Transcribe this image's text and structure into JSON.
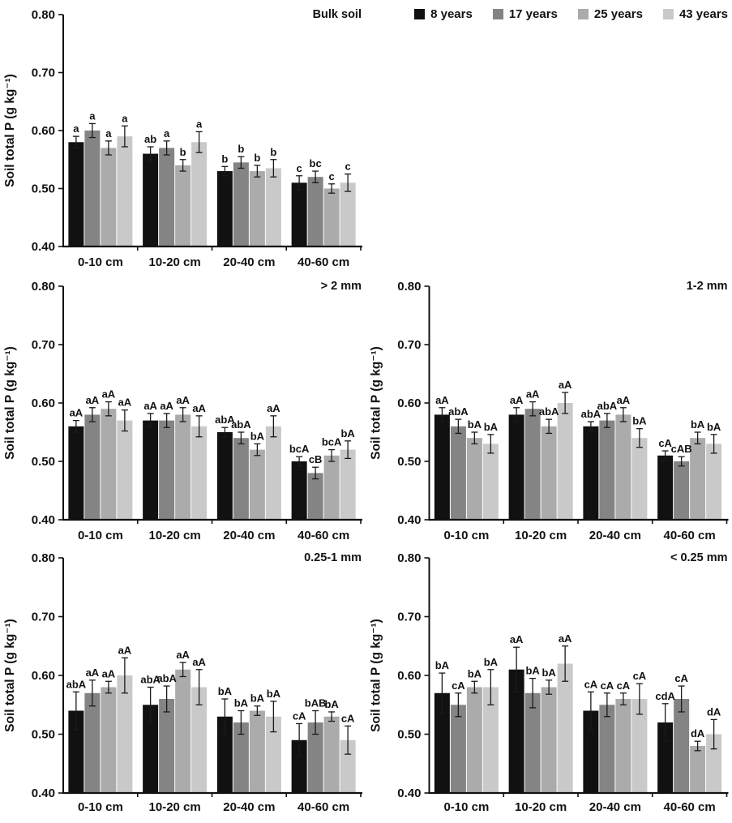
{
  "legend": {
    "items": [
      {
        "label": "8 years",
        "color": "#111111"
      },
      {
        "label": "17 years",
        "color": "#848484"
      },
      {
        "label": "25 years",
        "color": "#ababab"
      },
      {
        "label": "43 years",
        "color": "#c9c9c9"
      }
    ]
  },
  "axes": {
    "ylabel": "Soil total P (g kg⁻¹)",
    "ylim": [
      0.4,
      0.8
    ],
    "yticks": [
      "0.40",
      "0.50",
      "0.60",
      "0.70",
      "0.80"
    ],
    "categories": [
      "0-10 cm",
      "10-20 cm",
      "20-40 cm",
      "40-60 cm"
    ]
  },
  "chart_data": [
    {
      "type": "bar",
      "title": "Bulk soil",
      "xlabel": "",
      "ylabel": "Soil total P (g kg⁻¹)",
      "ylim": [
        0.4,
        0.8
      ],
      "yticks": [
        0.4,
        0.5,
        0.6,
        0.7,
        0.8
      ],
      "categories": [
        "0-10 cm",
        "10-20 cm",
        "20-40 cm",
        "40-60 cm"
      ],
      "legend_position": "top-right-outside",
      "grid": false,
      "series": [
        {
          "name": "8 years",
          "values": [
            0.58,
            0.56,
            0.53,
            0.51
          ],
          "errors": [
            0.01,
            0.012,
            0.008,
            0.012
          ],
          "sig_labels": [
            "a",
            "ab",
            "b",
            "c"
          ]
        },
        {
          "name": "17 years",
          "values": [
            0.6,
            0.57,
            0.545,
            0.52
          ],
          "errors": [
            0.012,
            0.012,
            0.01,
            0.01
          ],
          "sig_labels": [
            "a",
            "a",
            "b",
            "bc"
          ]
        },
        {
          "name": "25 years",
          "values": [
            0.57,
            0.54,
            0.53,
            0.5
          ],
          "errors": [
            0.012,
            0.01,
            0.01,
            0.008
          ],
          "sig_labels": [
            "a",
            "b",
            "b",
            "c"
          ]
        },
        {
          "name": "43 years",
          "values": [
            0.59,
            0.58,
            0.535,
            0.51
          ],
          "errors": [
            0.018,
            0.018,
            0.015,
            0.015
          ],
          "sig_labels": [
            "a",
            "a",
            "b",
            "c"
          ]
        }
      ]
    },
    {
      "type": "bar",
      "title": "> 2 mm",
      "xlabel": "",
      "ylabel": "Soil total P (g kg⁻¹)",
      "ylim": [
        0.4,
        0.8
      ],
      "yticks": [
        0.4,
        0.5,
        0.6,
        0.7,
        0.8
      ],
      "categories": [
        "0-10 cm",
        "10-20 cm",
        "20-40 cm",
        "40-60 cm"
      ],
      "grid": false,
      "series": [
        {
          "name": "8 years",
          "values": [
            0.56,
            0.57,
            0.55,
            0.5
          ],
          "errors": [
            0.01,
            0.012,
            0.008,
            0.008
          ],
          "sig_labels": [
            "aA",
            "aA",
            "abA",
            "bcA"
          ]
        },
        {
          "name": "17 years",
          "values": [
            0.58,
            0.57,
            0.54,
            0.48
          ],
          "errors": [
            0.012,
            0.012,
            0.01,
            0.01
          ],
          "sig_labels": [
            "aA",
            "aA",
            "abA",
            "cB"
          ]
        },
        {
          "name": "25 years",
          "values": [
            0.59,
            0.58,
            0.52,
            0.51
          ],
          "errors": [
            0.012,
            0.012,
            0.01,
            0.01
          ],
          "sig_labels": [
            "aA",
            "aA",
            "bA",
            "bcA"
          ]
        },
        {
          "name": "43 years",
          "values": [
            0.57,
            0.56,
            0.56,
            0.52
          ],
          "errors": [
            0.018,
            0.018,
            0.018,
            0.015
          ],
          "sig_labels": [
            "aA",
            "aA",
            "aA",
            "bA"
          ]
        }
      ]
    },
    {
      "type": "bar",
      "title": "1-2 mm",
      "xlabel": "",
      "ylabel": "Soil total P (g kg⁻¹)",
      "ylim": [
        0.4,
        0.8
      ],
      "yticks": [
        0.4,
        0.5,
        0.6,
        0.7,
        0.8
      ],
      "categories": [
        "0-10 cm",
        "10-20 cm",
        "20-40 cm",
        "40-60 cm"
      ],
      "grid": false,
      "series": [
        {
          "name": "8 years",
          "values": [
            0.58,
            0.58,
            0.56,
            0.51
          ],
          "errors": [
            0.012,
            0.012,
            0.008,
            0.008
          ],
          "sig_labels": [
            "aA",
            "aA",
            "abA",
            "cA"
          ]
        },
        {
          "name": "17 years",
          "values": [
            0.56,
            0.59,
            0.57,
            0.5
          ],
          "errors": [
            0.012,
            0.012,
            0.012,
            0.008
          ],
          "sig_labels": [
            "abA",
            "aA",
            "abA",
            "cAB"
          ]
        },
        {
          "name": "25 years",
          "values": [
            0.54,
            0.56,
            0.58,
            0.54
          ],
          "errors": [
            0.01,
            0.012,
            0.012,
            0.01
          ],
          "sig_labels": [
            "bA",
            "abA",
            "aA",
            "bA"
          ]
        },
        {
          "name": "43 years",
          "values": [
            0.53,
            0.6,
            0.54,
            0.53
          ],
          "errors": [
            0.016,
            0.018,
            0.016,
            0.016
          ],
          "sig_labels": [
            "bA",
            "aA",
            "bA",
            "bA"
          ]
        }
      ]
    },
    {
      "type": "bar",
      "title": "0.25-1 mm",
      "xlabel": "",
      "ylabel": "Soil total P (g kg⁻¹)",
      "ylim": [
        0.4,
        0.8
      ],
      "yticks": [
        0.4,
        0.5,
        0.6,
        0.7,
        0.8
      ],
      "categories": [
        "0-10 cm",
        "10-20 cm",
        "20-40 cm",
        "40-60 cm"
      ],
      "grid": false,
      "series": [
        {
          "name": "8 years",
          "values": [
            0.54,
            0.55,
            0.53,
            0.49
          ],
          "errors": [
            0.032,
            0.03,
            0.03,
            0.028
          ],
          "sig_labels": [
            "abA",
            "abA",
            "bA",
            "cA"
          ]
        },
        {
          "name": "17 years",
          "values": [
            0.57,
            0.56,
            0.52,
            0.52
          ],
          "errors": [
            0.022,
            0.022,
            0.02,
            0.02
          ],
          "sig_labels": [
            "aA",
            "abA",
            "bA",
            "bAB"
          ]
        },
        {
          "name": "25 years",
          "values": [
            0.58,
            0.61,
            0.54,
            0.53
          ],
          "errors": [
            0.01,
            0.012,
            0.008,
            0.008
          ],
          "sig_labels": [
            "aA",
            "aA",
            "bA",
            "bA"
          ]
        },
        {
          "name": "43 years",
          "values": [
            0.6,
            0.58,
            0.53,
            0.49
          ],
          "errors": [
            0.03,
            0.03,
            0.026,
            0.024
          ],
          "sig_labels": [
            "aA",
            "aA",
            "bA",
            "cA"
          ]
        }
      ]
    },
    {
      "type": "bar",
      "title": "< 0.25 mm",
      "xlabel": "",
      "ylabel": "Soil total P (g kg⁻¹)",
      "ylim": [
        0.4,
        0.8
      ],
      "yticks": [
        0.4,
        0.5,
        0.6,
        0.7,
        0.8
      ],
      "categories": [
        "0-10 cm",
        "10-20 cm",
        "20-40 cm",
        "40-60 cm"
      ],
      "grid": false,
      "series": [
        {
          "name": "8 years",
          "values": [
            0.57,
            0.61,
            0.54,
            0.52
          ],
          "errors": [
            0.034,
            0.038,
            0.032,
            0.032
          ],
          "sig_labels": [
            "bA",
            "aA",
            "cA",
            "cdA"
          ]
        },
        {
          "name": "17 years",
          "values": [
            0.55,
            0.57,
            0.55,
            0.56
          ],
          "errors": [
            0.02,
            0.025,
            0.02,
            0.022
          ],
          "sig_labels": [
            "cA",
            "bA",
            "cA",
            "cA"
          ]
        },
        {
          "name": "25 years",
          "values": [
            0.58,
            0.58,
            0.56,
            0.48
          ],
          "errors": [
            0.01,
            0.012,
            0.01,
            0.008
          ],
          "sig_labels": [
            "bA",
            "bA",
            "cA",
            "dA"
          ]
        },
        {
          "name": "43 years",
          "values": [
            0.58,
            0.62,
            0.56,
            0.5
          ],
          "errors": [
            0.03,
            0.03,
            0.026,
            0.025
          ],
          "sig_labels": [
            "bA",
            "aA",
            "cA",
            "dA"
          ]
        }
      ]
    }
  ]
}
